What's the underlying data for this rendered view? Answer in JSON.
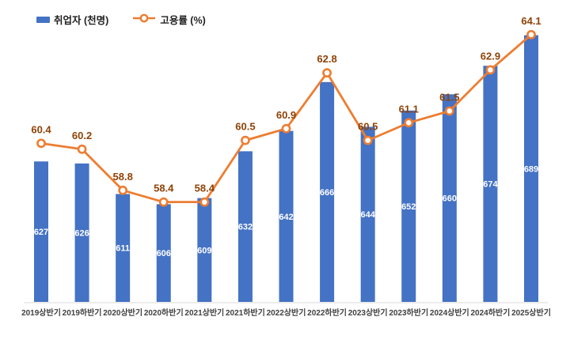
{
  "legend": [
    {
      "label": "취업자 (천명)",
      "type": "bar",
      "color": "#4472C4"
    },
    {
      "label": "고용률 (%)",
      "type": "line",
      "color": "#ED7D31"
    }
  ],
  "chart_data": {
    "type": "bar+line",
    "title": "",
    "categories": [
      "2019상반기",
      "2019하반기",
      "2020상반기",
      "2020하반기",
      "2021상반기",
      "2021하반기",
      "2022상반기",
      "2022하반기",
      "2023상반기",
      "2023하반기",
      "2024상반기",
      "2024하반기",
      "2025상반기"
    ],
    "series": [
      {
        "name": "취업자 (천명)",
        "type": "bar",
        "values": [
          627,
          626,
          611,
          606,
          609,
          632,
          642,
          666,
          644,
          652,
          660,
          674,
          689
        ],
        "color": "#4472C4",
        "label_color": "#FFFFFF",
        "ylim": [
          558,
          690
        ]
      },
      {
        "name": "고용률 (%)",
        "type": "line",
        "values": [
          60.4,
          60.2,
          58.8,
          58.4,
          58.4,
          60.5,
          60.9,
          62.8,
          60.5,
          61.1,
          61.5,
          62.9,
          64.1
        ],
        "color": "#ED7D31",
        "label_color": "#8F4206",
        "ylim": [
          55.0,
          64.15
        ]
      }
    ],
    "legend_position": "top-left",
    "grid": false,
    "baseline_color": "#D9D9D9",
    "xlabel_color": "#404040"
  }
}
